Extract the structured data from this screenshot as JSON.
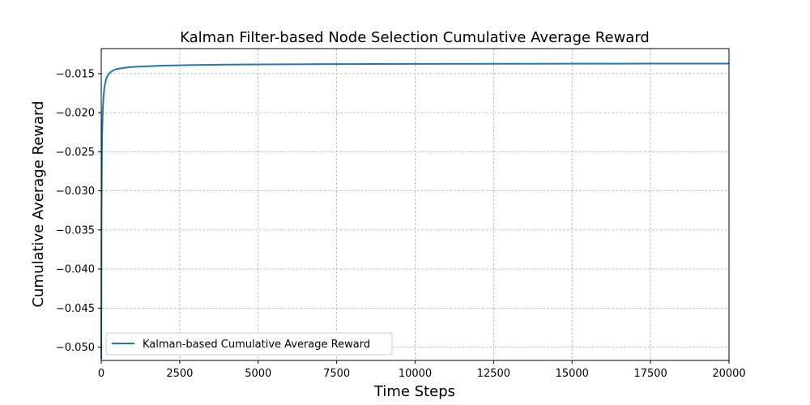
{
  "chart_data": {
    "type": "line",
    "title": "Kalman Filter-based Node Selection Cumulative Average Reward",
    "xlabel": "Time Steps",
    "ylabel": "Cumulative Average Reward",
    "xlim": [
      0,
      20000
    ],
    "ylim": [
      -0.0517,
      -0.0118
    ],
    "xticks": [
      0,
      2500,
      5000,
      7500,
      10000,
      12500,
      15000,
      17500,
      20000
    ],
    "xtick_labels": [
      "0",
      "2500",
      "5000",
      "7500",
      "10000",
      "12500",
      "15000",
      "17500",
      "20000"
    ],
    "yticks": [
      -0.05,
      -0.045,
      -0.04,
      -0.035,
      -0.03,
      -0.025,
      -0.02,
      -0.015
    ],
    "ytick_labels": [
      "−0.050",
      "−0.045",
      "−0.040",
      "−0.035",
      "−0.030",
      "−0.025",
      "−0.020",
      "−0.015"
    ],
    "grid": true,
    "legend_position": "lower-left",
    "series": [
      {
        "name": "Kalman-based Cumulative Average Reward",
        "color": "#1f77b4",
        "x": [
          1,
          10,
          25,
          50,
          75,
          100,
          150,
          200,
          250,
          300,
          400,
          500,
          750,
          1000,
          1500,
          2000,
          3000,
          4000,
          5000,
          7500,
          10000,
          12500,
          15000,
          17500,
          20000
        ],
        "y": [
          -0.0515,
          -0.033,
          -0.0235,
          -0.0195,
          -0.0178,
          -0.0168,
          -0.0158,
          -0.0153,
          -0.015,
          -0.0148,
          -0.01455,
          -0.0144,
          -0.01425,
          -0.01415,
          -0.01405,
          -0.01398,
          -0.0139,
          -0.01385,
          -0.01382,
          -0.01378,
          -0.01375,
          -0.01374,
          -0.01373,
          -0.01372,
          -0.01372
        ]
      }
    ]
  }
}
